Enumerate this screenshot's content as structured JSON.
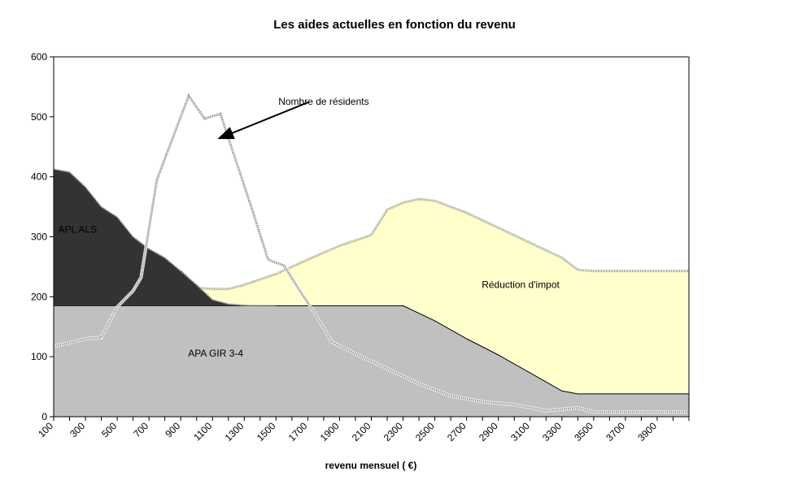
{
  "chart_data": {
    "type": "area",
    "title": "Les aides actuelles en fonction du revenu",
    "xlabel": "revenu mensuel ( €)",
    "ylabel": "",
    "xlim": [
      100,
      4100
    ],
    "ylim": [
      0,
      600
    ],
    "y_ticks": [
      "0",
      "100",
      "200",
      "300",
      "400",
      "500",
      "600"
    ],
    "x_tick_labels": [
      "100",
      "300",
      "500",
      "700",
      "900",
      "1100",
      "1300",
      "1500",
      "1700",
      "1900",
      "2100",
      "2300",
      "2500",
      "2700",
      "2900",
      "3100",
      "3300",
      "3500",
      "3700",
      "3900"
    ],
    "series": [
      {
        "name": "APA GIR 3-4",
        "kind": "stacked-area",
        "fill": "#c0c0c0",
        "points": [
          [
            100,
            185
          ],
          [
            1500,
            185
          ],
          [
            2300,
            185
          ],
          [
            2500,
            160
          ],
          [
            2700,
            130
          ],
          [
            2900,
            103
          ],
          [
            3100,
            73
          ],
          [
            3300,
            43
          ],
          [
            3400,
            38
          ],
          [
            3500,
            38
          ],
          [
            4100,
            38
          ]
        ]
      },
      {
        "name": "APL ALS",
        "kind": "stacked-area",
        "fill": "#333333",
        "points": [
          [
            100,
            413
          ],
          [
            200,
            408
          ],
          [
            300,
            383
          ],
          [
            400,
            350
          ],
          [
            500,
            333
          ],
          [
            600,
            300
          ],
          [
            700,
            280
          ],
          [
            800,
            265
          ],
          [
            900,
            243
          ],
          [
            1000,
            220
          ],
          [
            1100,
            195
          ],
          [
            1200,
            188
          ],
          [
            1300,
            186
          ],
          [
            1400,
            185
          ],
          [
            1500,
            185
          ]
        ]
      },
      {
        "name": "Réduction d'impot",
        "kind": "stacked-area",
        "fill": "#ffffcc",
        "points": [
          [
            900,
            243
          ],
          [
            1000,
            215
          ],
          [
            1100,
            213
          ],
          [
            1200,
            213
          ],
          [
            1300,
            220
          ],
          [
            1500,
            238
          ],
          [
            1700,
            262
          ],
          [
            1900,
            285
          ],
          [
            2100,
            303
          ],
          [
            2200,
            345
          ],
          [
            2300,
            357
          ],
          [
            2400,
            363
          ],
          [
            2500,
            360
          ],
          [
            2700,
            340
          ],
          [
            2900,
            315
          ],
          [
            3100,
            290
          ],
          [
            3300,
            265
          ],
          [
            3400,
            245
          ],
          [
            3500,
            243
          ],
          [
            4100,
            243
          ]
        ]
      },
      {
        "name": "Nombre de résidents",
        "kind": "line",
        "stroke": "#999999",
        "points": [
          [
            100,
            118
          ],
          [
            200,
            123
          ],
          [
            300,
            130
          ],
          [
            400,
            132
          ],
          [
            500,
            183
          ],
          [
            600,
            210
          ],
          [
            650,
            232
          ],
          [
            750,
            395
          ],
          [
            850,
            465
          ],
          [
            950,
            535
          ],
          [
            1050,
            497
          ],
          [
            1150,
            505
          ],
          [
            1250,
            425
          ],
          [
            1350,
            345
          ],
          [
            1450,
            262
          ],
          [
            1550,
            252
          ],
          [
            1650,
            210
          ],
          [
            1750,
            170
          ],
          [
            1850,
            125
          ],
          [
            2000,
            105
          ],
          [
            2200,
            80
          ],
          [
            2400,
            55
          ],
          [
            2600,
            35
          ],
          [
            2800,
            25
          ],
          [
            3000,
            20
          ],
          [
            3200,
            10
          ],
          [
            3400,
            15
          ],
          [
            3500,
            8
          ],
          [
            4100,
            8
          ]
        ]
      }
    ],
    "annotations": [
      {
        "text": "APL ALS",
        "x": 250,
        "y": 307
      },
      {
        "text": "APA GIR 3-4",
        "x": 1120,
        "y": 100
      },
      {
        "text": "Réduction d'impot",
        "x": 3040,
        "y": 215
      },
      {
        "text": "Nombre de résidents",
        "x": 1800,
        "y": 520,
        "arrow_to": [
          1150,
          465
        ],
        "arrow_from": [
          1710,
          525
        ]
      }
    ]
  }
}
